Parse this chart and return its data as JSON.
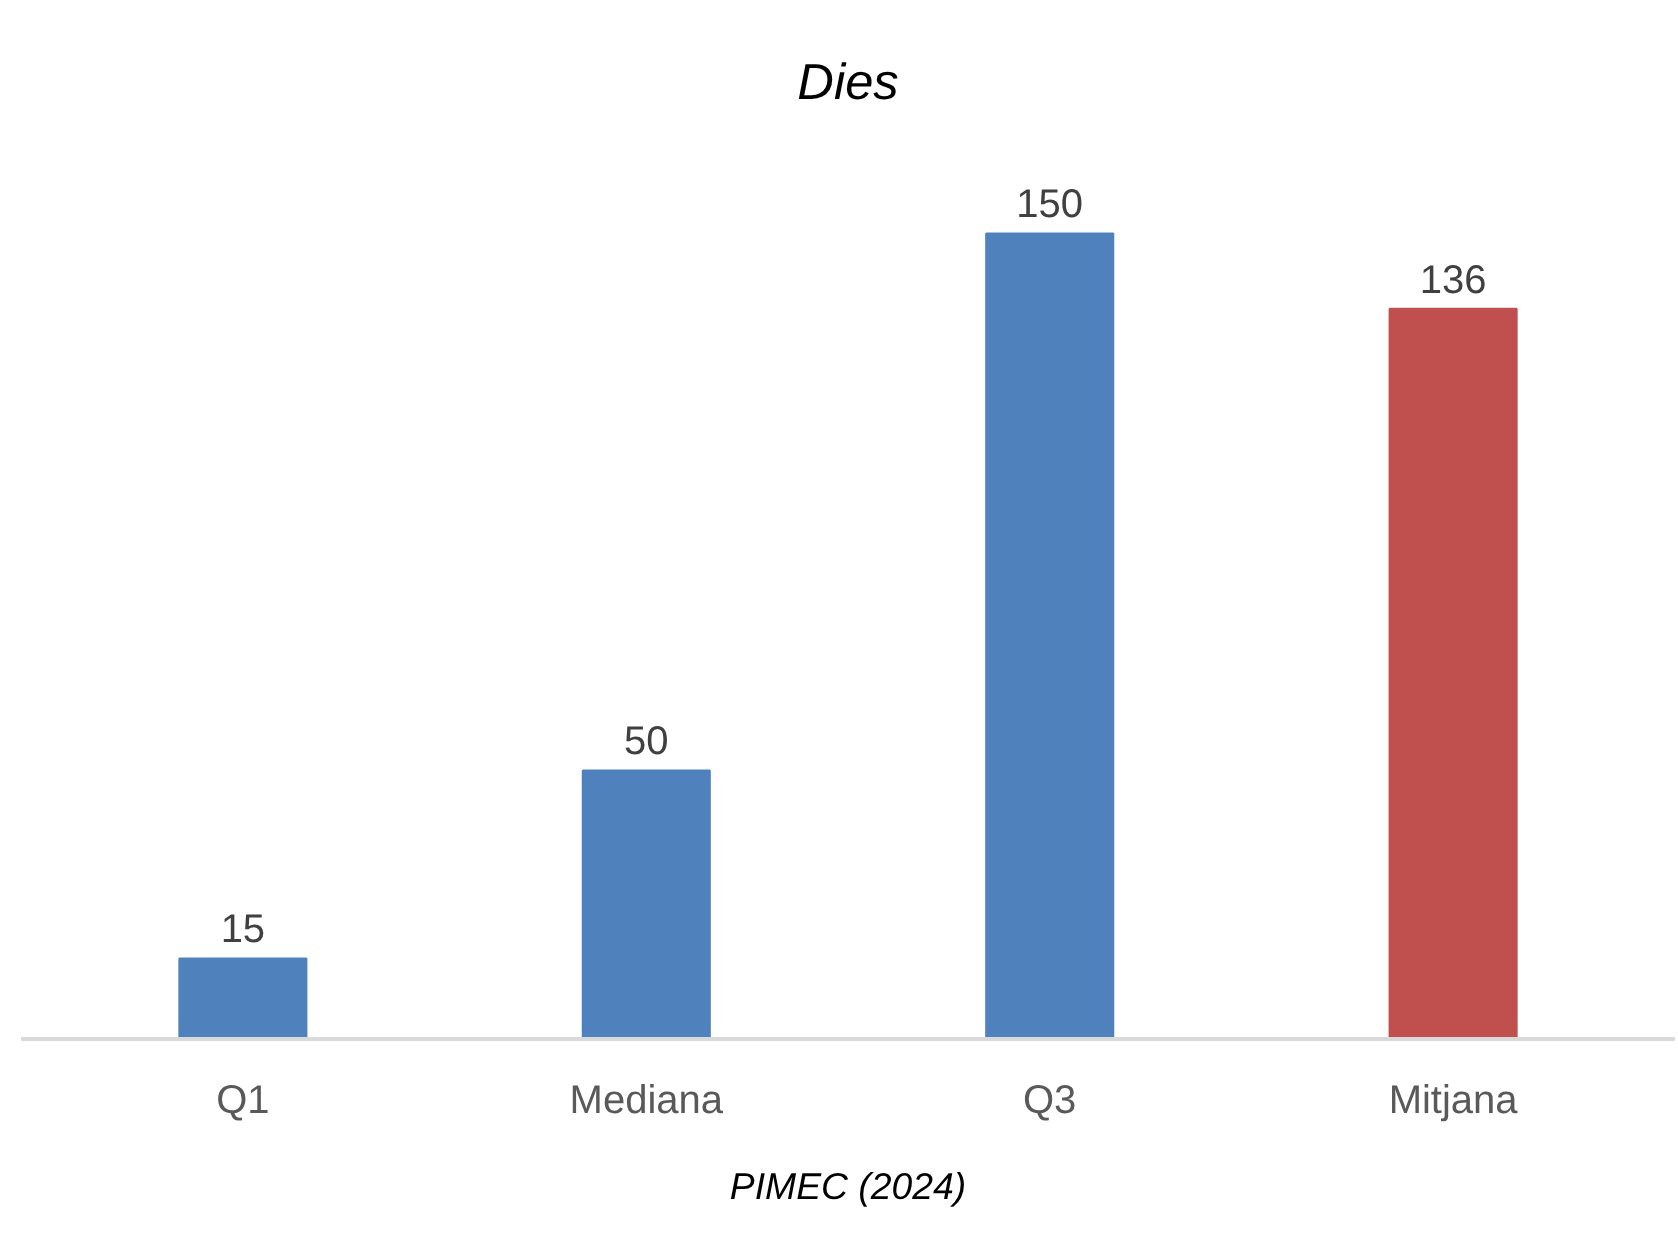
{
  "chart_data": {
    "type": "bar",
    "title": "Dies",
    "categories": [
      "Q1",
      "Mediana",
      "Q3",
      "Mitjana"
    ],
    "values": [
      15,
      50,
      150,
      136
    ],
    "colors": [
      "#4f81bd",
      "#4f81bd",
      "#4f81bd",
      "#c0504d"
    ],
    "data_labels": true,
    "annotations": [
      "PIMEC (2024)"
    ]
  }
}
